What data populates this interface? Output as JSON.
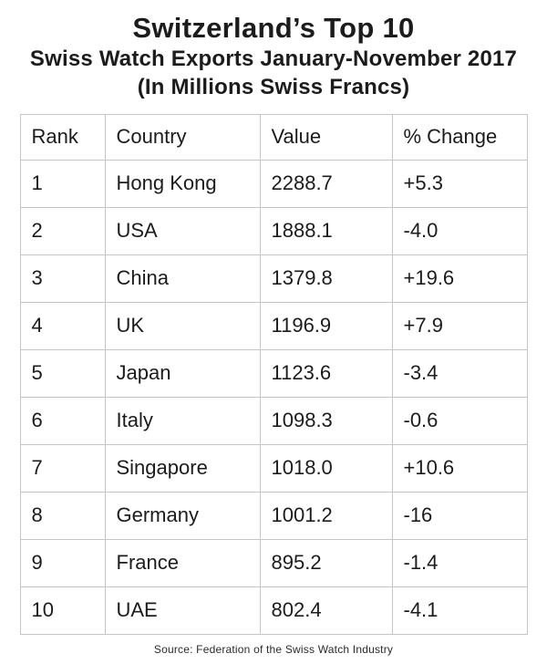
{
  "title": {
    "line1": "Switzerland’s Top 10",
    "line2": "Swiss Watch Exports January-November 2017",
    "line3": "(In Millions Swiss Francs)"
  },
  "chart_data": {
    "type": "table",
    "title": "Switzerland’s Top 10 Swiss Watch Exports January-November 2017 (In Millions Swiss Francs)",
    "unit": "Millions Swiss Francs",
    "columns": [
      "Rank",
      "Country",
      "Value",
      "% Change"
    ],
    "rows": [
      [
        "1",
        "Hong Kong",
        "2288.7",
        "+5.3"
      ],
      [
        "2",
        "USA",
        "1888.1",
        "-4.0"
      ],
      [
        "3",
        "China",
        "1379.8",
        "+19.6"
      ],
      [
        "4",
        "UK",
        "1196.9",
        "+7.9"
      ],
      [
        "5",
        "Japan",
        "1123.6",
        "-3.4"
      ],
      [
        "6",
        "Italy",
        "1098.3",
        "-0.6"
      ],
      [
        "7",
        "Singapore",
        "1018.0",
        "+10.6"
      ],
      [
        "8",
        "Germany",
        "1001.2",
        "-16"
      ],
      [
        "9",
        "France",
        "895.2",
        "-1.4"
      ],
      [
        "10",
        "UAE",
        "802.4",
        "-4.1"
      ]
    ]
  },
  "footer": {
    "source": "Source: Federation of the Swiss Watch Industry"
  },
  "colors": {
    "text": "#1c1c1c",
    "border": "#c5c5c5",
    "background": "#ffffff"
  }
}
